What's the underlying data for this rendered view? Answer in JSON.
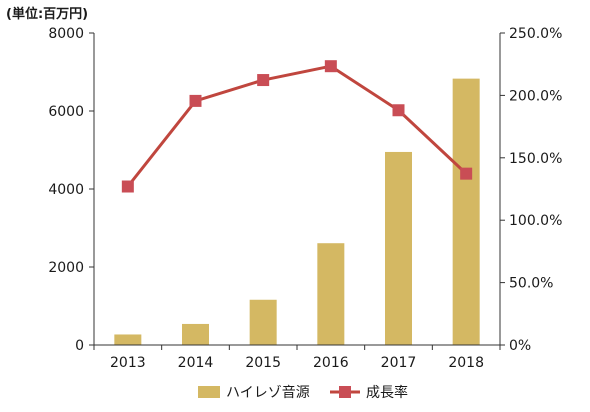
{
  "chart_data": {
    "type": "bar",
    "unit_label": "(単位:百万円)",
    "categories": [
      "2013",
      "2014",
      "2015",
      "2016",
      "2017",
      "2018"
    ],
    "series": [
      {
        "name": "ハイレゾ音源",
        "type": "bar",
        "axis": "left",
        "color": "#D4B863",
        "values": [
          270,
          540,
          1160,
          2610,
          4950,
          6830
        ]
      },
      {
        "name": "成長率",
        "type": "line",
        "axis": "right",
        "color": "#C0463E",
        "marker_color": "#C94D55",
        "values": [
          127.0,
          195.6,
          212.3,
          223.4,
          188.1,
          137.3
        ]
      }
    ],
    "left_axis": {
      "ylim": [
        0,
        8000
      ],
      "ticks": [
        "0",
        "2000",
        "4000",
        "6000",
        "8000"
      ]
    },
    "right_axis": {
      "ylim": [
        0,
        250
      ],
      "ticks": [
        "0%",
        "50.0%",
        "100.0%",
        "150.0%",
        "200.0%",
        "250.0%"
      ]
    },
    "grid": false,
    "legend_position": "bottom"
  }
}
